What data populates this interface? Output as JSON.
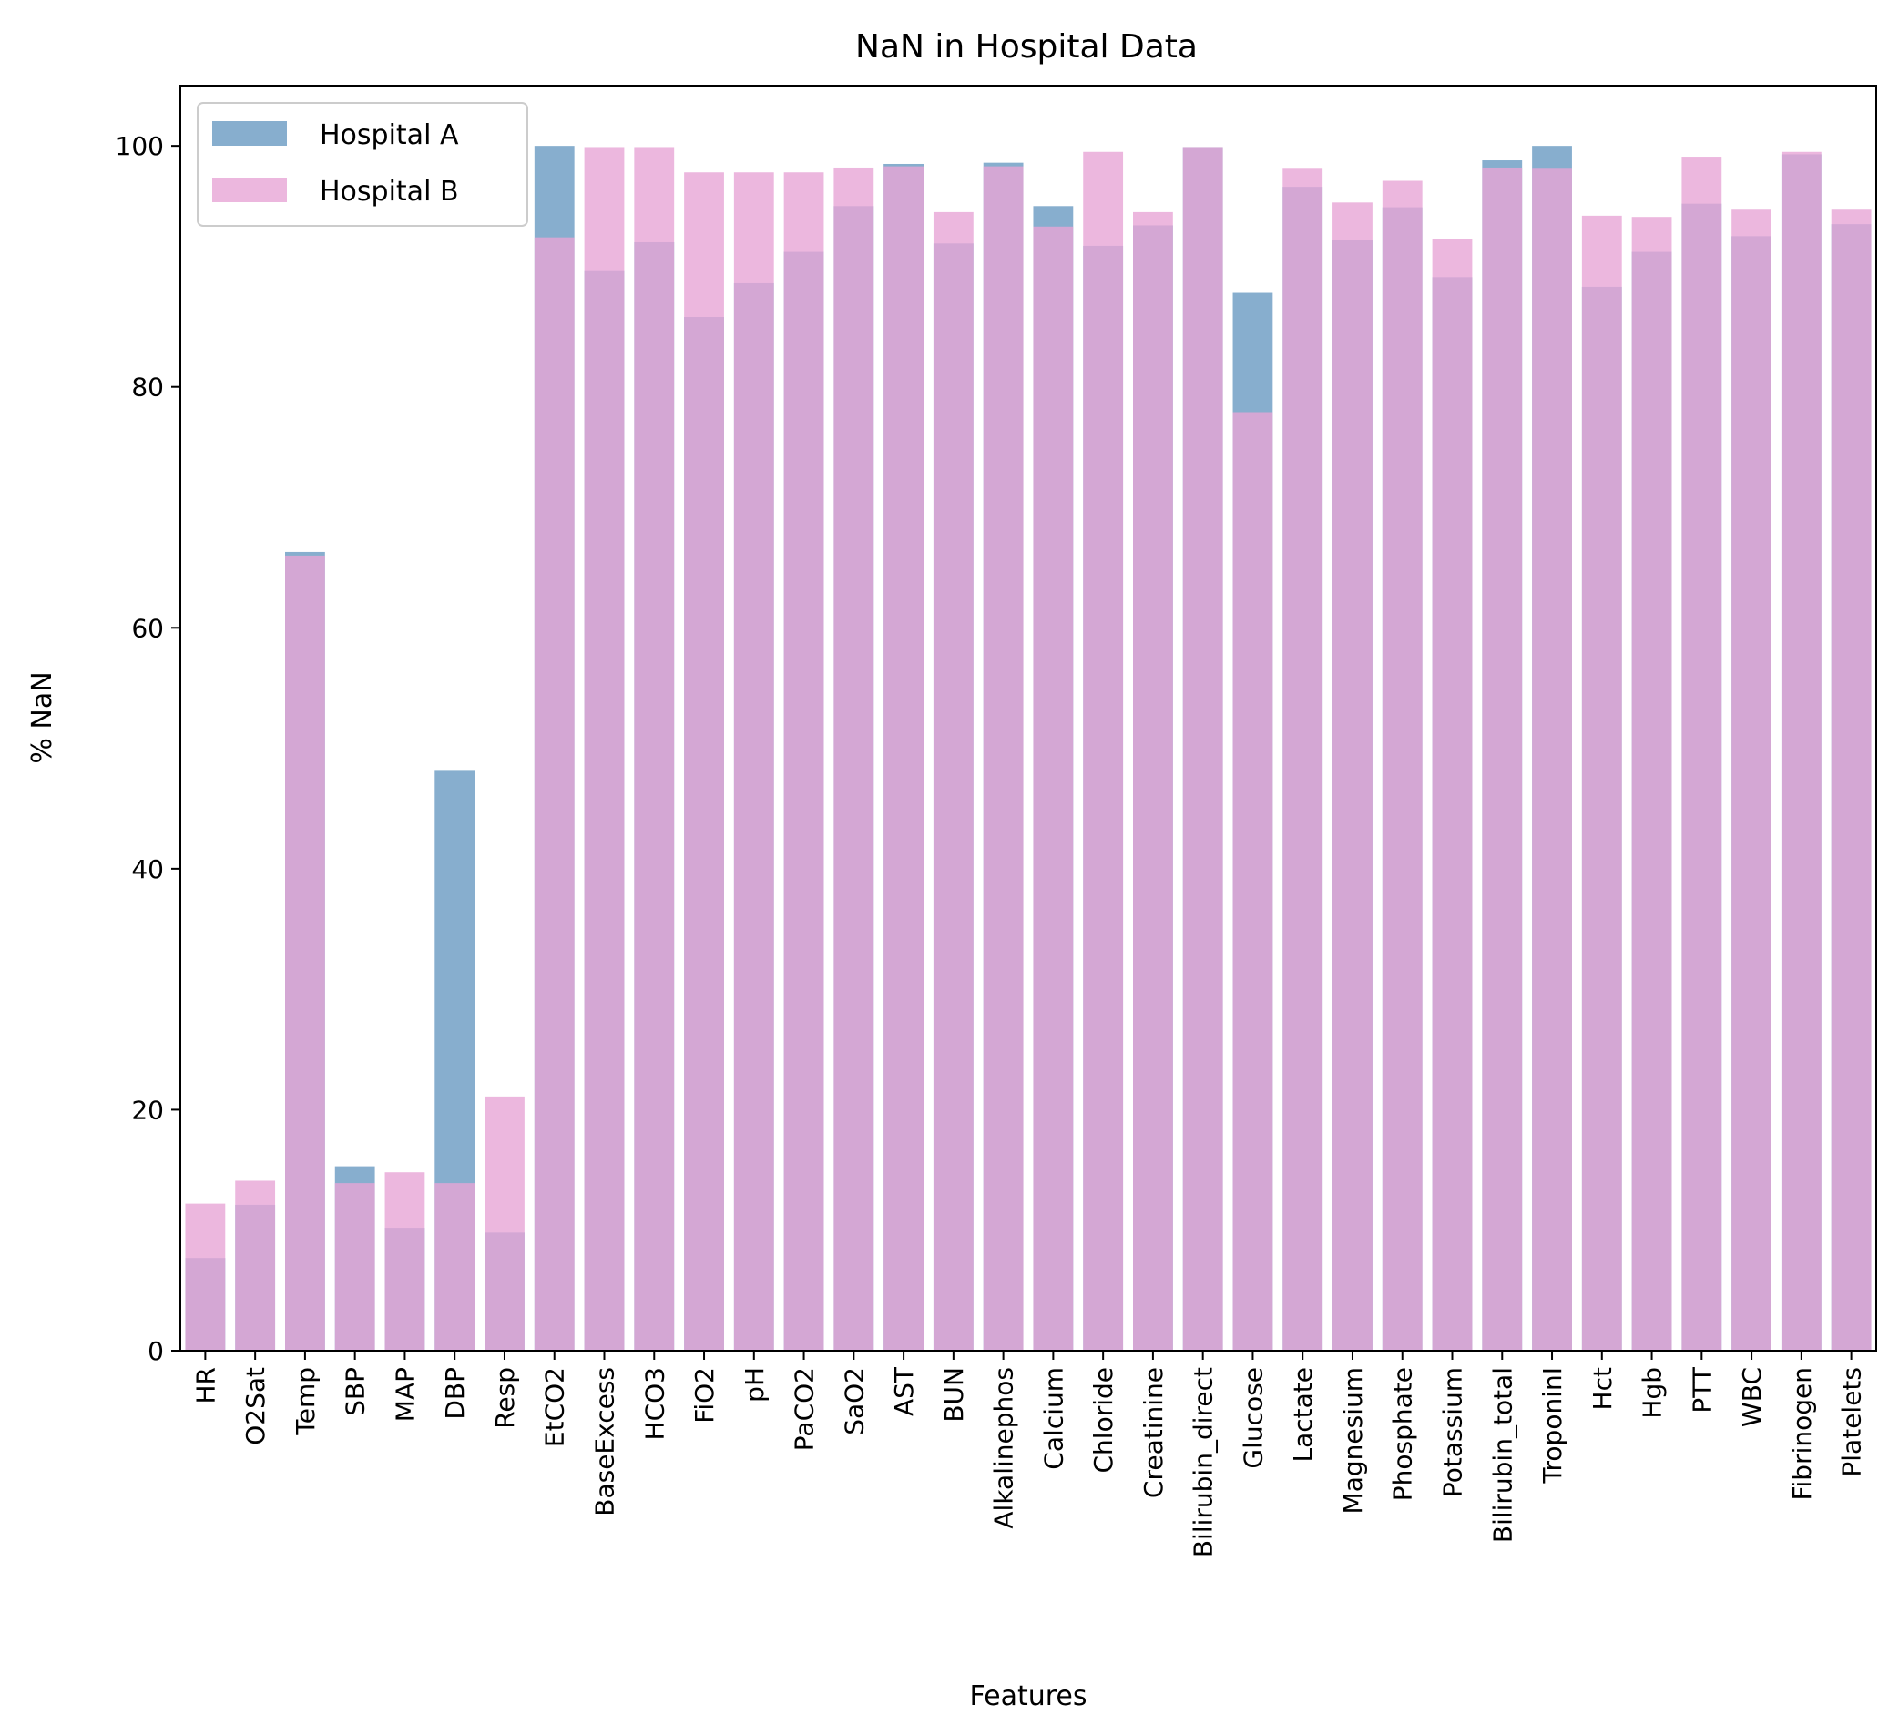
{
  "chart_data": {
    "type": "bar",
    "title": "NaN in Hospital Data",
    "xlabel": "Features",
    "ylabel": "% NaN",
    "ylim": [
      0,
      105
    ],
    "yticks": [
      0,
      20,
      40,
      60,
      80,
      100
    ],
    "grid": false,
    "legend_position": "top-left",
    "overlap": true,
    "categories": [
      "HR",
      "O2Sat",
      "Temp",
      "SBP",
      "MAP",
      "DBP",
      "Resp",
      "EtCO2",
      "BaseExcess",
      "HCO3",
      "FiO2",
      "pH",
      "PaCO2",
      "SaO2",
      "AST",
      "BUN",
      "Alkalinephos",
      "Calcium",
      "Chloride",
      "Creatinine",
      "Bilirubin_direct",
      "Glucose",
      "Lactate",
      "Magnesium",
      "Phosphate",
      "Potassium",
      "Bilirubin_total",
      "TroponinI",
      "Hct",
      "Hgb",
      "PTT",
      "WBC",
      "Fibrinogen",
      "Platelets"
    ],
    "series": [
      {
        "name": "Hospital A",
        "color": "#4682b4",
        "opacity": 0.65,
        "values": [
          7.7,
          12.1,
          66.3,
          15.3,
          10.2,
          48.2,
          9.8,
          100.0,
          89.6,
          92.0,
          85.8,
          88.6,
          91.2,
          95.0,
          98.5,
          91.9,
          98.6,
          95.0,
          91.7,
          93.4,
          99.9,
          87.8,
          96.6,
          92.2,
          94.9,
          89.1,
          98.8,
          100.0,
          88.3,
          91.2,
          95.2,
          92.5,
          99.3,
          93.5
        ]
      },
      {
        "name": "Hospital B",
        "color": "#e7a5d6",
        "opacity": 0.8,
        "values": [
          12.2,
          14.1,
          66.0,
          13.9,
          14.8,
          13.9,
          21.1,
          92.4,
          99.9,
          99.9,
          97.8,
          97.8,
          97.8,
          98.2,
          98.3,
          94.5,
          98.3,
          93.3,
          99.5,
          94.5,
          99.9,
          77.9,
          98.1,
          95.3,
          97.1,
          92.3,
          98.2,
          98.1,
          94.2,
          94.1,
          99.1,
          94.7,
          99.5,
          94.7
        ]
      }
    ]
  }
}
